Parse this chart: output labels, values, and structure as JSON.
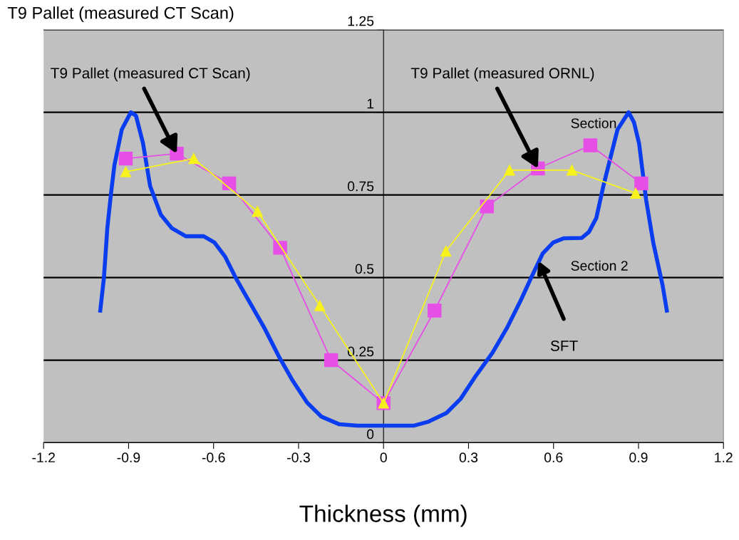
{
  "chart_data": {
    "type": "line",
    "title": "T9 Pallet (measured CT Scan)",
    "xlabel": "Thickness (mm)",
    "xlim": [
      -1.2,
      1.2
    ],
    "xticks": [
      -1.2,
      -0.9,
      -0.6,
      -0.3,
      0,
      0.3,
      0.6,
      0.9,
      1.2
    ],
    "ylim": [
      0,
      1.25
    ],
    "yticks": [
      0,
      0.25,
      0.5,
      0.75,
      1,
      1.25
    ],
    "grid": "y",
    "series": [
      {
        "color": "#0a3cf0",
        "marker": "none",
        "x": [
          -1.0,
          -0.987,
          -0.975,
          -0.962,
          -0.95,
          -0.924,
          -0.892,
          -0.874,
          -0.849,
          -0.824,
          -0.786,
          -0.748,
          -0.698,
          -0.635,
          -0.597,
          -0.559,
          -0.521,
          -0.471,
          -0.421,
          -0.37,
          -0.32,
          -0.27,
          -0.219,
          -0.156,
          -0.093,
          0,
          0.108,
          0.159,
          0.222,
          0.272,
          0.322,
          0.385,
          0.436,
          0.486,
          0.524,
          0.562,
          0.599,
          0.637,
          0.7,
          0.725,
          0.751,
          0.776,
          0.801,
          0.826,
          0.865,
          0.884,
          0.902,
          0.927,
          0.952,
          0.985,
          1.0
        ],
        "values": [
          0.4,
          0.5,
          0.65,
          0.755,
          0.84,
          0.948,
          1.0,
          0.99,
          0.906,
          0.777,
          0.69,
          0.65,
          0.625,
          0.625,
          0.606,
          0.563,
          0.498,
          0.423,
          0.348,
          0.262,
          0.187,
          0.122,
          0.079,
          0.056,
          0.052,
          0.052,
          0.052,
          0.064,
          0.09,
          0.133,
          0.198,
          0.273,
          0.348,
          0.434,
          0.505,
          0.573,
          0.606,
          0.619,
          0.62,
          0.638,
          0.68,
          0.777,
          0.863,
          0.948,
          1.0,
          0.97,
          0.906,
          0.735,
          0.606,
          0.477,
          0.4
        ]
      },
      {
        "color": "#e64fe6",
        "marker": "square",
        "x": [
          -0.91,
          -0.73,
          -0.545,
          -0.365,
          -0.185,
          0,
          0.18,
          0.365,
          0.545,
          0.73,
          0.91
        ],
        "values": [
          0.86,
          0.875,
          0.785,
          0.59,
          0.25,
          0.12,
          0.4,
          0.715,
          0.83,
          0.9,
          0.785
        ]
      },
      {
        "color": "#f7f21c",
        "marker": "triangle",
        "x": [
          -0.91,
          -0.67,
          -0.445,
          -0.225,
          0,
          0.22,
          0.445,
          0.665,
          0.89
        ],
        "values": [
          0.82,
          0.86,
          0.7,
          0.415,
          0.12,
          0.58,
          0.825,
          0.825,
          0.755
        ]
      }
    ],
    "annotations": [
      {
        "text": "T9 Pallet (measured CT Scan)",
        "x": -0.73,
        "y": 0.875
      },
      {
        "text": "T9 Pallet (measured ORNL)",
        "x": 0.545,
        "y": 0.83
      },
      "Section",
      "Section 2",
      "SFT"
    ]
  }
}
